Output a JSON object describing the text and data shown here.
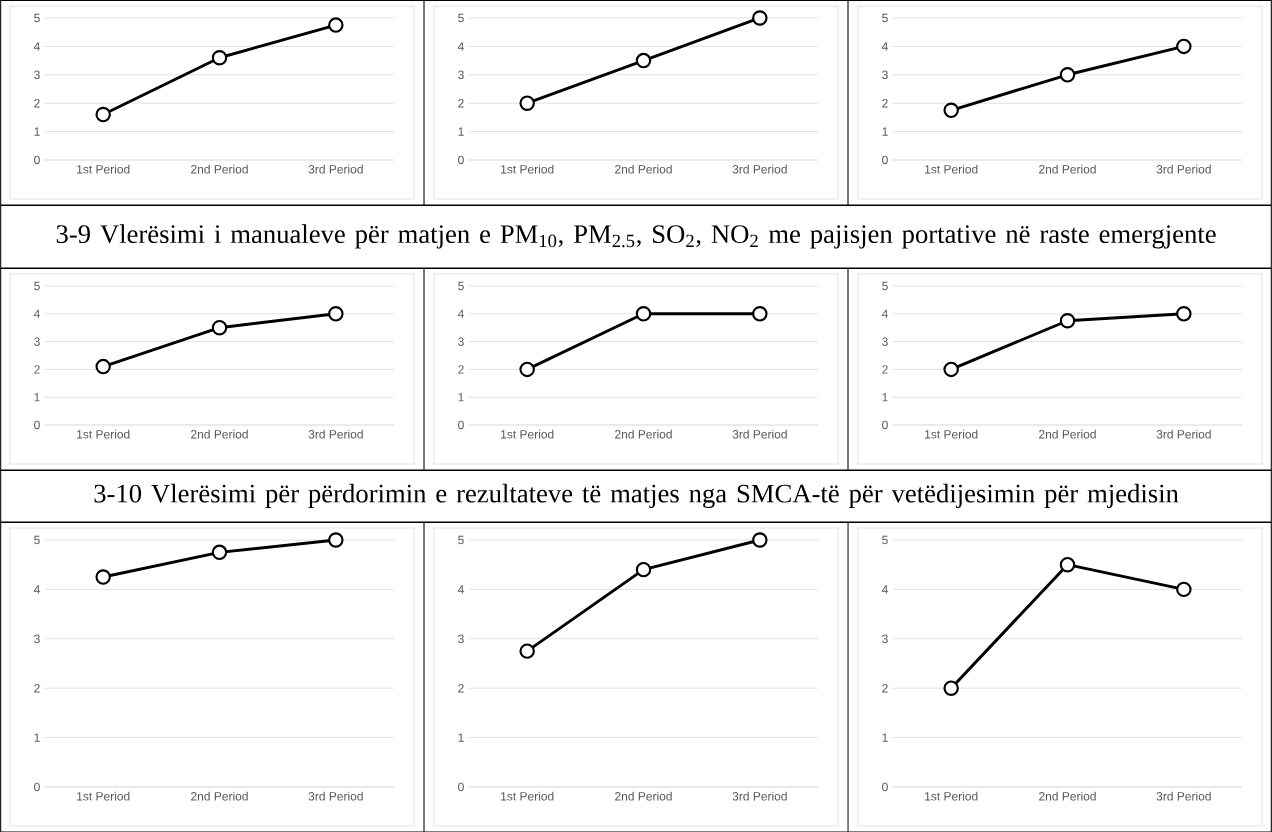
{
  "chart_data": [
    {
      "type": "line",
      "categories": [
        "1st Period",
        "2nd Period",
        "3rd Period"
      ],
      "series": [
        {
          "color": "#000000",
          "values": [
            1.6,
            3.6,
            4.75
          ]
        }
      ],
      "ylim": [
        0,
        5
      ],
      "yticks": [
        0,
        1,
        2,
        3,
        4,
        5
      ],
      "grid": "y",
      "marker": "circle"
    },
    {
      "type": "line",
      "categories": [
        "1st Period",
        "2nd Period",
        "3rd Period"
      ],
      "series": [
        {
          "color": "#000000",
          "values": [
            2,
            3.5,
            5
          ]
        }
      ],
      "ylim": [
        0,
        5
      ],
      "yticks": [
        0,
        1,
        2,
        3,
        4,
        5
      ],
      "grid": "y",
      "marker": "circle"
    },
    {
      "type": "line",
      "categories": [
        "1st Period",
        "2nd Period",
        "3rd Period"
      ],
      "series": [
        {
          "color": "#000000",
          "values": [
            1.75,
            3,
            4
          ]
        }
      ],
      "ylim": [
        0,
        5
      ],
      "yticks": [
        0,
        1,
        2,
        3,
        4,
        5
      ],
      "grid": "y",
      "marker": "circle"
    },
    {
      "type": "other",
      "title": "3-9 Vlerësimi i manualeve për matjen e PM$_{10}$, PM$_{2.5}$, SO$_{2}$, NO$_{2}$ me pajisjen portative në raste emergjente"
    },
    {
      "type": "line",
      "categories": [
        "1st Period",
        "2nd Period",
        "3rd Period"
      ],
      "series": [
        {
          "color": "#000000",
          "values": [
            2.1,
            3.5,
            4
          ]
        }
      ],
      "ylim": [
        0,
        5
      ],
      "yticks": [
        0,
        1,
        2,
        3,
        4,
        5
      ],
      "grid": "y",
      "marker": "circle"
    },
    {
      "type": "line",
      "categories": [
        "1st Period",
        "2nd Period",
        "3rd Period"
      ],
      "series": [
        {
          "color": "#000000",
          "values": [
            2,
            4,
            4
          ]
        }
      ],
      "ylim": [
        0,
        5
      ],
      "yticks": [
        0,
        1,
        2,
        3,
        4,
        5
      ],
      "grid": "y",
      "marker": "circle"
    },
    {
      "type": "line",
      "categories": [
        "1st Period",
        "2nd Period",
        "3rd Period"
      ],
      "series": [
        {
          "color": "#000000",
          "values": [
            2,
            3.75,
            4
          ]
        }
      ],
      "ylim": [
        0,
        5
      ],
      "yticks": [
        0,
        1,
        2,
        3,
        4,
        5
      ],
      "grid": "y",
      "marker": "circle"
    },
    {
      "type": "other",
      "title": "3-10 Vlerësimi për përdorimin e rezultateve të matjes nga SMCA-të për vetëdijesimin për mjedisin"
    },
    {
      "type": "line",
      "categories": [
        "1st Period",
        "2nd Period",
        "3rd Period"
      ],
      "series": [
        {
          "color": "#000000",
          "values": [
            4.25,
            4.75,
            5
          ]
        }
      ],
      "ylim": [
        0,
        5
      ],
      "yticks": [
        0,
        1,
        2,
        3,
        4,
        5
      ],
      "grid": "y",
      "marker": "circle"
    },
    {
      "type": "line",
      "categories": [
        "1st Period",
        "2nd Period",
        "3rd Period"
      ],
      "series": [
        {
          "color": "#000000",
          "values": [
            2.75,
            4.4,
            5
          ]
        }
      ],
      "ylim": [
        0,
        5
      ],
      "yticks": [
        0,
        1,
        2,
        3,
        4,
        5
      ],
      "grid": "y",
      "marker": "circle"
    },
    {
      "type": "line",
      "categories": [
        "1st Period",
        "2nd Period",
        "3rd Period"
      ],
      "series": [
        {
          "color": "#000000",
          "values": [
            2,
            4.5,
            4
          ]
        }
      ],
      "ylim": [
        0,
        5
      ],
      "yticks": [
        0,
        1,
        2,
        3,
        4,
        5
      ],
      "grid": "y",
      "marker": "circle"
    }
  ]
}
